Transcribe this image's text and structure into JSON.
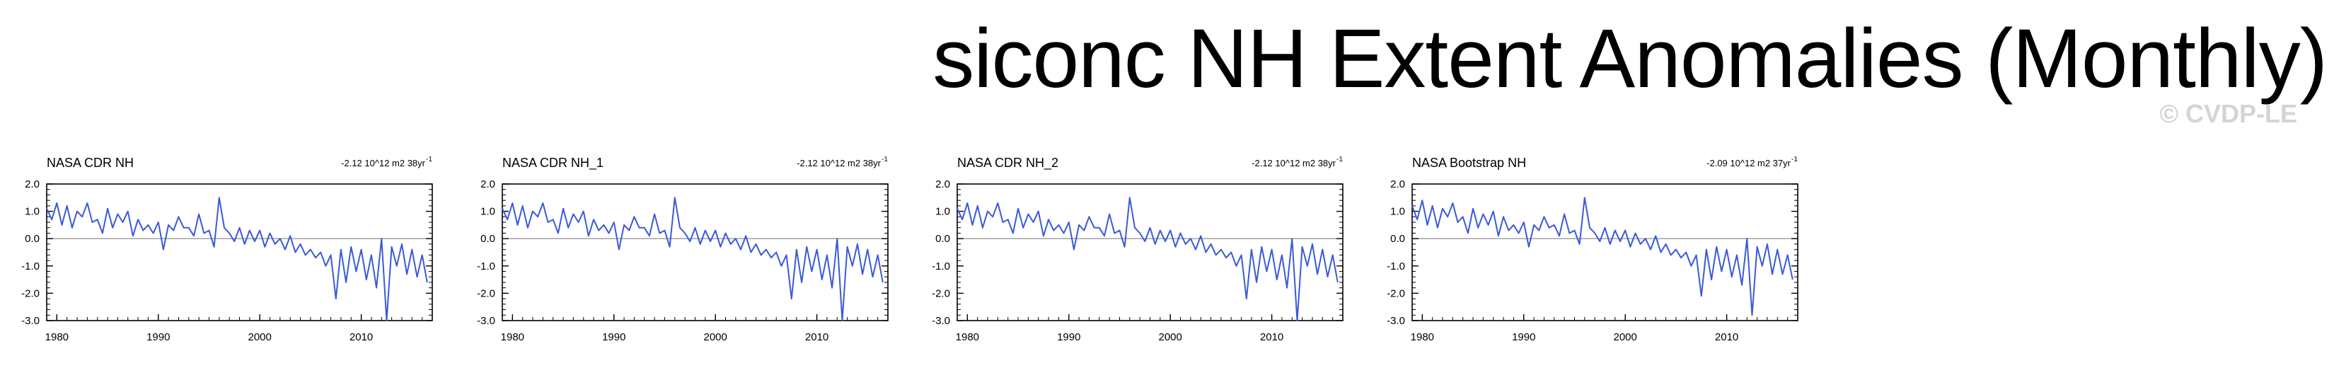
{
  "title": "siconc NH Extent Anomalies (Monthly)",
  "watermark": "© CVDP-LE",
  "colors": {
    "series": "#3a5ad8",
    "zero_line": "#9a9a9a",
    "axis": "#000000"
  },
  "chart_data": [
    {
      "type": "line",
      "title": "NASA CDR NH",
      "trend_label": "-2.12 10^12 m2 38yr",
      "trend_superscript": "-1",
      "xlim": [
        1979,
        2017
      ],
      "ylim": [
        -3.0,
        2.0
      ],
      "x_ticks": [
        "1980",
        "1990",
        "2000",
        "2010"
      ],
      "y_ticks": [
        "2.0",
        "1.0",
        "0.0",
        "-1.0",
        "-2.0",
        "-3.0"
      ],
      "y_tick_values": [
        2.0,
        1.0,
        0.0,
        -1.0,
        -2.0,
        -3.0
      ],
      "series": [
        {
          "x": [
            1979.0,
            1979.5,
            1980.0,
            1980.5,
            1981.0,
            1981.5,
            1982.0,
            1982.5,
            1983.0,
            1983.5,
            1984.0,
            1984.5,
            1985.0,
            1985.5,
            1986.0,
            1986.5,
            1987.0,
            1987.5,
            1988.0,
            1988.5,
            1989.0,
            1989.5,
            1990.0,
            1990.5,
            1991.0,
            1991.5,
            1992.0,
            1992.5,
            1993.0,
            1993.5,
            1994.0,
            1994.5,
            1995.0,
            1995.5,
            1996.0,
            1996.5,
            1997.0,
            1997.5,
            1998.0,
            1998.5,
            1999.0,
            1999.5,
            2000.0,
            2000.5,
            2001.0,
            2001.5,
            2002.0,
            2002.5,
            2003.0,
            2003.5,
            2004.0,
            2004.5,
            2005.0,
            2005.5,
            2006.0,
            2006.5,
            2007.0,
            2007.5,
            2008.0,
            2008.5,
            2009.0,
            2009.5,
            2010.0,
            2010.5,
            2011.0,
            2011.5,
            2012.0,
            2012.5,
            2013.0,
            2013.5,
            2014.0,
            2014.5,
            2015.0,
            2015.5,
            2016.0,
            2016.5
          ],
          "y": [
            1.1,
            0.7,
            1.3,
            0.5,
            1.2,
            0.4,
            1.0,
            0.8,
            1.3,
            0.6,
            0.7,
            0.2,
            1.1,
            0.4,
            0.9,
            0.6,
            1.0,
            0.1,
            0.7,
            0.3,
            0.5,
            0.2,
            0.6,
            -0.4,
            0.5,
            0.3,
            0.8,
            0.4,
            0.4,
            0.1,
            0.9,
            0.2,
            0.3,
            -0.3,
            1.5,
            0.4,
            0.2,
            -0.1,
            0.4,
            -0.2,
            0.3,
            -0.1,
            0.3,
            -0.3,
            0.2,
            -0.2,
            0.0,
            -0.4,
            0.1,
            -0.5,
            -0.2,
            -0.6,
            -0.4,
            -0.7,
            -0.5,
            -1.0,
            -0.6,
            -2.2,
            -0.4,
            -1.6,
            -0.3,
            -1.2,
            -0.4,
            -1.5,
            -0.6,
            -1.8,
            0.0,
            -3.0,
            -0.3,
            -1.0,
            -0.2,
            -1.3,
            -0.4,
            -1.4,
            -0.6,
            -1.6
          ]
        }
      ]
    },
    {
      "type": "line",
      "title": "NASA CDR NH_1",
      "trend_label": "-2.12 10^12 m2 38yr",
      "trend_superscript": "-1",
      "xlim": [
        1979,
        2017
      ],
      "ylim": [
        -3.0,
        2.0
      ],
      "x_ticks": [
        "1980",
        "1990",
        "2000",
        "2010"
      ],
      "y_ticks": [
        "2.0",
        "1.0",
        "0.0",
        "-1.0",
        "-2.0",
        "-3.0"
      ],
      "y_tick_values": [
        2.0,
        1.0,
        0.0,
        -1.0,
        -2.0,
        -3.0
      ],
      "series": [
        {
          "x": [
            1979.0,
            1979.5,
            1980.0,
            1980.5,
            1981.0,
            1981.5,
            1982.0,
            1982.5,
            1983.0,
            1983.5,
            1984.0,
            1984.5,
            1985.0,
            1985.5,
            1986.0,
            1986.5,
            1987.0,
            1987.5,
            1988.0,
            1988.5,
            1989.0,
            1989.5,
            1990.0,
            1990.5,
            1991.0,
            1991.5,
            1992.0,
            1992.5,
            1993.0,
            1993.5,
            1994.0,
            1994.5,
            1995.0,
            1995.5,
            1996.0,
            1996.5,
            1997.0,
            1997.5,
            1998.0,
            1998.5,
            1999.0,
            1999.5,
            2000.0,
            2000.5,
            2001.0,
            2001.5,
            2002.0,
            2002.5,
            2003.0,
            2003.5,
            2004.0,
            2004.5,
            2005.0,
            2005.5,
            2006.0,
            2006.5,
            2007.0,
            2007.5,
            2008.0,
            2008.5,
            2009.0,
            2009.5,
            2010.0,
            2010.5,
            2011.0,
            2011.5,
            2012.0,
            2012.5,
            2013.0,
            2013.5,
            2014.0,
            2014.5,
            2015.0,
            2015.5,
            2016.0,
            2016.5
          ],
          "y": [
            1.1,
            0.7,
            1.3,
            0.5,
            1.2,
            0.4,
            1.0,
            0.8,
            1.3,
            0.6,
            0.7,
            0.2,
            1.1,
            0.4,
            0.9,
            0.6,
            1.0,
            0.1,
            0.7,
            0.3,
            0.5,
            0.2,
            0.6,
            -0.4,
            0.5,
            0.3,
            0.8,
            0.4,
            0.4,
            0.1,
            0.9,
            0.2,
            0.3,
            -0.3,
            1.5,
            0.4,
            0.2,
            -0.1,
            0.4,
            -0.2,
            0.3,
            -0.1,
            0.3,
            -0.3,
            0.2,
            -0.2,
            0.0,
            -0.4,
            0.1,
            -0.5,
            -0.2,
            -0.6,
            -0.4,
            -0.7,
            -0.5,
            -1.0,
            -0.6,
            -2.2,
            -0.4,
            -1.6,
            -0.3,
            -1.2,
            -0.4,
            -1.5,
            -0.6,
            -1.8,
            0.0,
            -3.0,
            -0.3,
            -1.0,
            -0.2,
            -1.3,
            -0.4,
            -1.4,
            -0.6,
            -1.6
          ]
        }
      ]
    },
    {
      "type": "line",
      "title": "NASA CDR NH_2",
      "trend_label": "-2.12 10^12 m2 38yr",
      "trend_superscript": "-1",
      "xlim": [
        1979,
        2017
      ],
      "ylim": [
        -3.0,
        2.0
      ],
      "x_ticks": [
        "1980",
        "1990",
        "2000",
        "2010"
      ],
      "y_ticks": [
        "2.0",
        "1.0",
        "0.0",
        "-1.0",
        "-2.0",
        "-3.0"
      ],
      "y_tick_values": [
        2.0,
        1.0,
        0.0,
        -1.0,
        -2.0,
        -3.0
      ],
      "series": [
        {
          "x": [
            1979.0,
            1979.5,
            1980.0,
            1980.5,
            1981.0,
            1981.5,
            1982.0,
            1982.5,
            1983.0,
            1983.5,
            1984.0,
            1984.5,
            1985.0,
            1985.5,
            1986.0,
            1986.5,
            1987.0,
            1987.5,
            1988.0,
            1988.5,
            1989.0,
            1989.5,
            1990.0,
            1990.5,
            1991.0,
            1991.5,
            1992.0,
            1992.5,
            1993.0,
            1993.5,
            1994.0,
            1994.5,
            1995.0,
            1995.5,
            1996.0,
            1996.5,
            1997.0,
            1997.5,
            1998.0,
            1998.5,
            1999.0,
            1999.5,
            2000.0,
            2000.5,
            2001.0,
            2001.5,
            2002.0,
            2002.5,
            2003.0,
            2003.5,
            2004.0,
            2004.5,
            2005.0,
            2005.5,
            2006.0,
            2006.5,
            2007.0,
            2007.5,
            2008.0,
            2008.5,
            2009.0,
            2009.5,
            2010.0,
            2010.5,
            2011.0,
            2011.5,
            2012.0,
            2012.5,
            2013.0,
            2013.5,
            2014.0,
            2014.5,
            2015.0,
            2015.5,
            2016.0,
            2016.5
          ],
          "y": [
            1.1,
            0.7,
            1.3,
            0.5,
            1.2,
            0.4,
            1.0,
            0.8,
            1.3,
            0.6,
            0.7,
            0.2,
            1.1,
            0.4,
            0.9,
            0.6,
            1.0,
            0.1,
            0.7,
            0.3,
            0.5,
            0.2,
            0.6,
            -0.4,
            0.5,
            0.3,
            0.8,
            0.4,
            0.4,
            0.1,
            0.9,
            0.2,
            0.3,
            -0.3,
            1.5,
            0.4,
            0.2,
            -0.1,
            0.4,
            -0.2,
            0.3,
            -0.1,
            0.3,
            -0.3,
            0.2,
            -0.2,
            0.0,
            -0.4,
            0.1,
            -0.5,
            -0.2,
            -0.6,
            -0.4,
            -0.7,
            -0.5,
            -1.0,
            -0.6,
            -2.2,
            -0.4,
            -1.6,
            -0.3,
            -1.2,
            -0.4,
            -1.5,
            -0.6,
            -1.8,
            0.0,
            -3.0,
            -0.3,
            -1.0,
            -0.2,
            -1.3,
            -0.4,
            -1.4,
            -0.6,
            -1.6
          ]
        }
      ]
    },
    {
      "type": "line",
      "title": "NASA Bootstrap NH",
      "trend_label": "-2.09 10^12 m2 37yr",
      "trend_superscript": "-1",
      "xlim": [
        1979,
        2017
      ],
      "ylim": [
        -3.0,
        2.0
      ],
      "x_ticks": [
        "1980",
        "1990",
        "2000",
        "2010"
      ],
      "y_ticks": [
        "2.0",
        "1.0",
        "0.0",
        "-1.0",
        "-2.0",
        "-3.0"
      ],
      "y_tick_values": [
        2.0,
        1.0,
        0.0,
        -1.0,
        -2.0,
        -3.0
      ],
      "series": [
        {
          "x": [
            1979.0,
            1979.5,
            1980.0,
            1980.5,
            1981.0,
            1981.5,
            1982.0,
            1982.5,
            1983.0,
            1983.5,
            1984.0,
            1984.5,
            1985.0,
            1985.5,
            1986.0,
            1986.5,
            1987.0,
            1987.5,
            1988.0,
            1988.5,
            1989.0,
            1989.5,
            1990.0,
            1990.5,
            1991.0,
            1991.5,
            1992.0,
            1992.5,
            1993.0,
            1993.5,
            1994.0,
            1994.5,
            1995.0,
            1995.5,
            1996.0,
            1996.5,
            1997.0,
            1997.5,
            1998.0,
            1998.5,
            1999.0,
            1999.5,
            2000.0,
            2000.5,
            2001.0,
            2001.5,
            2002.0,
            2002.5,
            2003.0,
            2003.5,
            2004.0,
            2004.5,
            2005.0,
            2005.5,
            2006.0,
            2006.5,
            2007.0,
            2007.5,
            2008.0,
            2008.5,
            2009.0,
            2009.5,
            2010.0,
            2010.5,
            2011.0,
            2011.5,
            2012.0,
            2012.5,
            2013.0,
            2013.5,
            2014.0,
            2014.5,
            2015.0,
            2015.5,
            2016.0,
            2016.5
          ],
          "y": [
            1.2,
            0.7,
            1.4,
            0.5,
            1.2,
            0.4,
            1.1,
            0.8,
            1.3,
            0.6,
            0.8,
            0.2,
            1.1,
            0.4,
            0.9,
            0.5,
            1.0,
            0.1,
            0.8,
            0.3,
            0.5,
            0.2,
            0.6,
            -0.3,
            0.5,
            0.3,
            0.8,
            0.4,
            0.5,
            0.1,
            0.9,
            0.2,
            0.3,
            -0.2,
            1.5,
            0.4,
            0.2,
            -0.1,
            0.4,
            -0.2,
            0.3,
            -0.1,
            0.3,
            -0.3,
            0.2,
            -0.2,
            0.0,
            -0.4,
            0.1,
            -0.5,
            -0.2,
            -0.6,
            -0.4,
            -0.7,
            -0.5,
            -1.0,
            -0.6,
            -2.1,
            -0.4,
            -1.5,
            -0.3,
            -1.2,
            -0.4,
            -1.4,
            -0.6,
            -1.7,
            0.0,
            -2.8,
            -0.3,
            -1.0,
            -0.2,
            -1.3,
            -0.4,
            -1.3,
            -0.6,
            -1.5
          ]
        }
      ]
    }
  ]
}
